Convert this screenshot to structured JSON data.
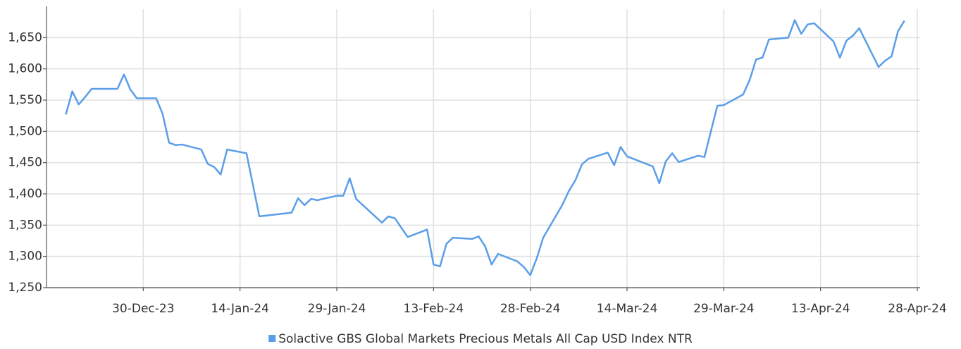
{
  "chart_data": {
    "type": "line",
    "x": [
      "2023-12-18",
      "2023-12-19",
      "2023-12-20",
      "2023-12-21",
      "2023-12-22",
      "2023-12-25",
      "2023-12-26",
      "2023-12-27",
      "2023-12-28",
      "2023-12-29",
      "2024-01-01",
      "2024-01-02",
      "2024-01-03",
      "2024-01-04",
      "2024-01-05",
      "2024-01-08",
      "2024-01-09",
      "2024-01-10",
      "2024-01-11",
      "2024-01-12",
      "2024-01-15",
      "2024-01-17",
      "2024-01-22",
      "2024-01-23",
      "2024-01-24",
      "2024-01-25",
      "2024-01-26",
      "2024-01-29",
      "2024-01-30",
      "2024-01-31",
      "2024-02-01",
      "2024-02-05",
      "2024-02-06",
      "2024-02-07",
      "2024-02-09",
      "2024-02-12",
      "2024-02-13",
      "2024-02-14",
      "2024-02-15",
      "2024-02-16",
      "2024-02-19",
      "2024-02-20",
      "2024-02-21",
      "2024-02-22",
      "2024-02-23",
      "2024-02-26",
      "2024-02-27",
      "2024-02-28",
      "2024-02-29",
      "2024-03-01",
      "2024-03-04",
      "2024-03-05",
      "2024-03-06",
      "2024-03-07",
      "2024-03-08",
      "2024-03-11",
      "2024-03-12",
      "2024-03-13",
      "2024-03-14",
      "2024-03-18",
      "2024-03-19",
      "2024-03-20",
      "2024-03-21",
      "2024-03-22",
      "2024-03-25",
      "2024-03-26",
      "2024-03-27",
      "2024-03-28",
      "2024-03-29",
      "2024-04-01",
      "2024-04-02",
      "2024-04-03",
      "2024-04-04",
      "2024-04-05",
      "2024-04-08",
      "2024-04-09",
      "2024-04-10",
      "2024-04-11",
      "2024-04-12",
      "2024-04-15",
      "2024-04-16",
      "2024-04-17",
      "2024-04-18",
      "2024-04-19",
      "2024-04-22",
      "2024-04-23",
      "2024-04-24",
      "2024-04-25",
      "2024-04-26"
    ],
    "series": [
      {
        "name": "Solactive GBS Global Markets Precious Metals All Cap USD Index NTR",
        "color": "#5b9ee8",
        "values": [
          1527,
          1564,
          1543,
          1555,
          1568,
          1568,
          1568,
          1591,
          1567,
          1553,
          1553,
          1528,
          1482,
          1478,
          1479,
          1471,
          1448,
          1443,
          1431,
          1471,
          1465,
          1364,
          1370,
          1393,
          1382,
          1392,
          1390,
          1397,
          1397,
          1425,
          1392,
          1354,
          1364,
          1361,
          1331,
          1343,
          1287,
          1284,
          1320,
          1330,
          1328,
          1332,
          1316,
          1287,
          1304,
          1292,
          1283,
          1270,
          1297,
          1330,
          1383,
          1405,
          1422,
          1447,
          1456,
          1466,
          1446,
          1475,
          1460,
          1444,
          1417,
          1452,
          1465,
          1451,
          1461,
          1459,
          1500,
          1541,
          1542,
          1559,
          1582,
          1615,
          1618,
          1647,
          1650,
          1678,
          1656,
          1671,
          1673,
          1644,
          1618,
          1645,
          1653,
          1665,
          1603,
          1613,
          1620,
          1660,
          1677
        ]
      }
    ],
    "xlim": [
      "2023-12-15",
      "2024-04-28"
    ],
    "xticks": [
      {
        "value": "2023-12-30",
        "label": "30-Dec-23"
      },
      {
        "value": "2024-01-14",
        "label": "14-Jan-24"
      },
      {
        "value": "2024-01-29",
        "label": "29-Jan-24"
      },
      {
        "value": "2024-02-13",
        "label": "13-Feb-24"
      },
      {
        "value": "2024-02-28",
        "label": "28-Feb-24"
      },
      {
        "value": "2024-03-14",
        "label": "14-Mar-24"
      },
      {
        "value": "2024-03-29",
        "label": "29-Mar-24"
      },
      {
        "value": "2024-04-13",
        "label": "13-Apr-24"
      },
      {
        "value": "2024-04-28",
        "label": "28-Apr-24"
      }
    ],
    "ylim": [
      1250,
      1700
    ],
    "yticks": [
      {
        "value": 1250,
        "label": "1,250"
      },
      {
        "value": 1300,
        "label": "1,300"
      },
      {
        "value": 1350,
        "label": "1,350"
      },
      {
        "value": 1400,
        "label": "1,400"
      },
      {
        "value": 1450,
        "label": "1,450"
      },
      {
        "value": 1500,
        "label": "1,500"
      },
      {
        "value": 1550,
        "label": "1,550"
      },
      {
        "value": 1600,
        "label": "1,600"
      },
      {
        "value": 1650,
        "label": "1,650"
      }
    ],
    "grid": true,
    "legend": "bottom"
  }
}
